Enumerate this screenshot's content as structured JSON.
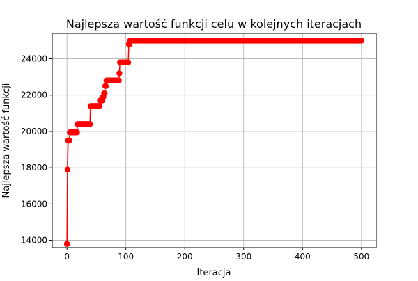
{
  "chart_data": {
    "type": "line",
    "title": "Najlepsza wartość funkcji celu w kolejnych iteracjach",
    "xlabel": "Iteracja",
    "ylabel": "Najlepsza wartość funkcji",
    "xlim": [
      -25,
      525
    ],
    "ylim": [
      13600,
      25400
    ],
    "xticks": [
      0,
      100,
      200,
      300,
      400,
      500
    ],
    "yticks": [
      14000,
      16000,
      18000,
      20000,
      22000,
      24000
    ],
    "xtick_labels": [
      "0",
      "100",
      "200",
      "300",
      "400",
      "500"
    ],
    "ytick_labels": [
      "14000",
      "16000",
      "18000",
      "20000",
      "22000",
      "24000"
    ],
    "grid": true,
    "marker": "circle",
    "color": "#ff0000",
    "series": [
      {
        "segments": [
          {
            "from": 0,
            "to": 0,
            "value": 13800
          },
          {
            "from": 1,
            "to": 1,
            "value": 17900
          },
          {
            "from": 2,
            "to": 4,
            "value": 19500
          },
          {
            "from": 5,
            "to": 17,
            "value": 19950
          },
          {
            "from": 18,
            "to": 39,
            "value": 20400
          },
          {
            "from": 40,
            "to": 55,
            "value": 21400
          },
          {
            "from": 56,
            "to": 60,
            "value": 21700
          },
          {
            "from": 61,
            "to": 62,
            "value": 21900
          },
          {
            "from": 63,
            "to": 64,
            "value": 22100
          },
          {
            "from": 65,
            "to": 66,
            "value": 22500
          },
          {
            "from": 67,
            "to": 88,
            "value": 22800
          },
          {
            "from": 89,
            "to": 89,
            "value": 23200
          },
          {
            "from": 90,
            "to": 104,
            "value": 23800
          },
          {
            "from": 105,
            "to": 106,
            "value": 24800
          },
          {
            "from": 107,
            "to": 500,
            "value": 25000
          }
        ]
      }
    ]
  }
}
